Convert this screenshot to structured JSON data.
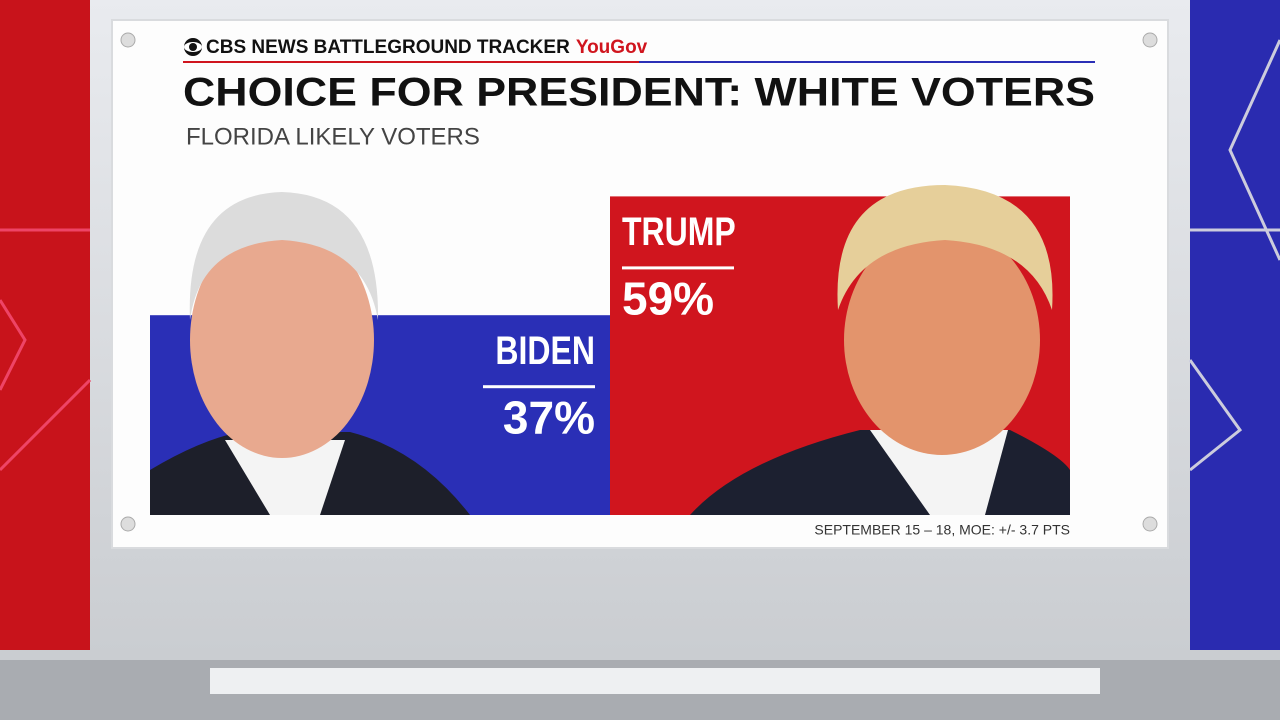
{
  "chart_data": {
    "type": "bar",
    "header": "CBS NEWS BATTLEGROUND TRACKER",
    "partner": "YouGov",
    "title": "CHOICE FOR PRESIDENT: WHITE VOTERS",
    "subtitle": "FLORIDA LIKELY VOTERS",
    "categories": [
      "BIDEN",
      "TRUMP"
    ],
    "values": [
      37,
      59
    ],
    "value_labels": [
      "37%",
      "59%"
    ],
    "colors": [
      "#2a2fb6",
      "#d0151e"
    ],
    "note": "SEPTEMBER 15 – 18, MOE: +/- 3.7 PTS"
  }
}
